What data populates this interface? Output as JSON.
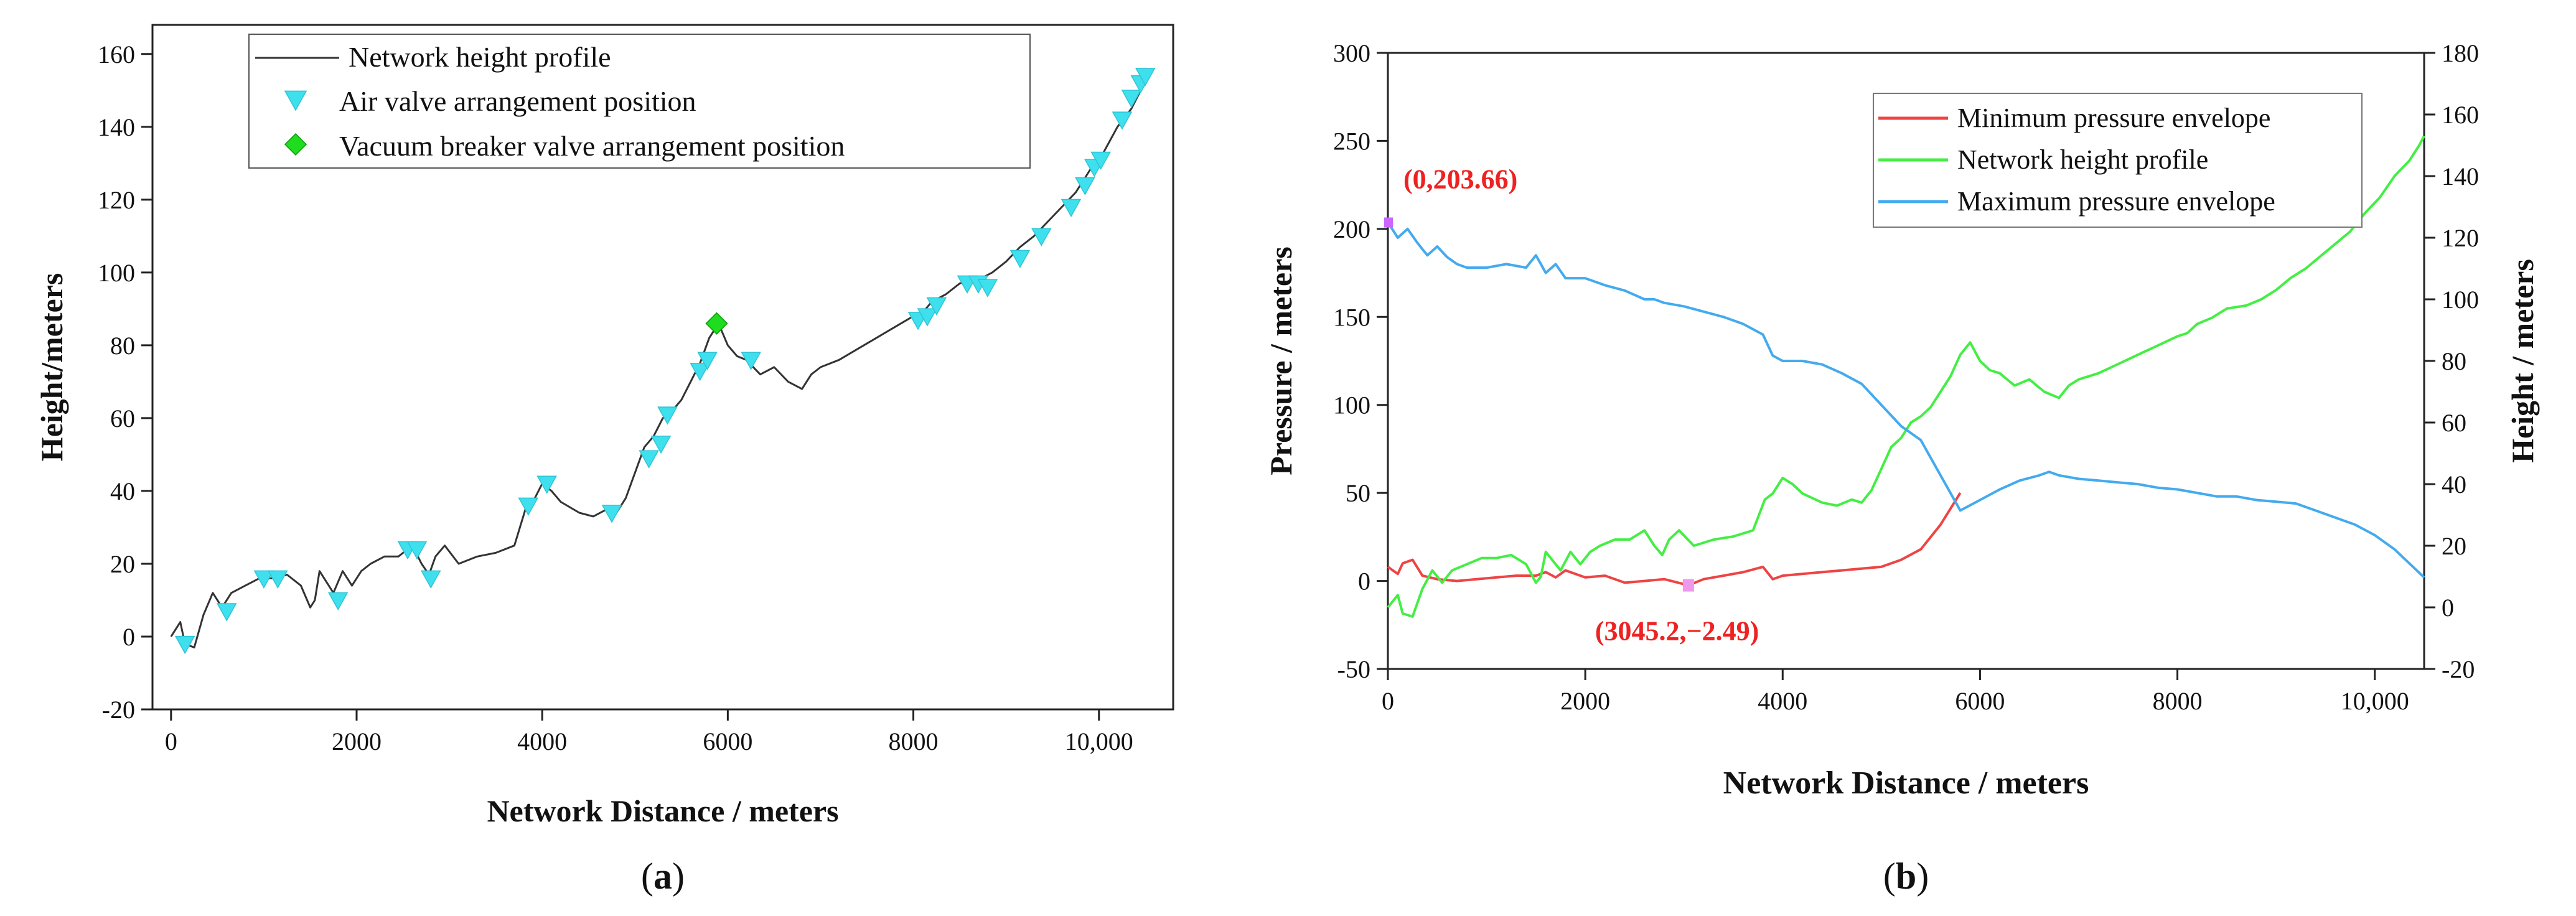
{
  "chart_data": [
    {
      "panel": "a",
      "caption_open": "(",
      "caption_letter": "a",
      "caption_close": ")",
      "type": "line",
      "xlabel": "Network Distance / meters",
      "ylabel": "Height/meters",
      "xlim": [
        -200,
        10800
      ],
      "ylim": [
        -20,
        168
      ],
      "xticks": [
        0,
        2000,
        4000,
        6000,
        8000,
        10000
      ],
      "xtick_labels": [
        "0",
        "2000",
        "4000",
        "6000",
        "8000",
        "10,000"
      ],
      "yticks": [
        -20,
        0,
        20,
        40,
        60,
        80,
        100,
        120,
        140,
        160
      ],
      "ytick_labels": [
        "-20",
        "0",
        "20",
        "40",
        "60",
        "80",
        "100",
        "120",
        "140",
        "160"
      ],
      "legend_position": "top-center",
      "legend": [
        {
          "label": "Network height profile",
          "color": "#333333",
          "kind": "line"
        },
        {
          "label": "Air valve arrangement position",
          "color": "#3fe0ee",
          "kind": "triangle-down"
        },
        {
          "label": "Vacuum breaker valve arrangement position",
          "color": "#1fdc1f",
          "kind": "diamond"
        }
      ],
      "series": [
        {
          "name": "Network height profile",
          "color": "#333333",
          "x": [
            0,
            100,
            150,
            250,
            350,
            450,
            550,
            650,
            800,
            950,
            1100,
            1250,
            1400,
            1500,
            1550,
            1600,
            1700,
            1750,
            1850,
            1950,
            2050,
            2150,
            2300,
            2450,
            2600,
            2700,
            2780,
            2850,
            2950,
            3100,
            3300,
            3500,
            3700,
            3820,
            3900,
            4000,
            4100,
            4200,
            4400,
            4550,
            4700,
            4800,
            4900,
            5000,
            5100,
            5200,
            5300,
            5400,
            5500,
            5600,
            5700,
            5800,
            5900,
            6000,
            6100,
            6200,
            6350,
            6500,
            6650,
            6800,
            6900,
            7000,
            7200,
            7400,
            7600,
            7800,
            8000,
            8100,
            8200,
            8350,
            8500,
            8700,
            8850,
            9000,
            9150,
            9300,
            9450,
            9600,
            9750,
            9900,
            10050,
            10200,
            10350,
            10450,
            10500
          ],
          "values": [
            0,
            4,
            -2,
            -3,
            6,
            12,
            8,
            12,
            14,
            16,
            16,
            17,
            14,
            8,
            10,
            18,
            14,
            12,
            18,
            14,
            18,
            20,
            22,
            22,
            25,
            20,
            17,
            22,
            25,
            20,
            22,
            23,
            25,
            35,
            37,
            42,
            40,
            37,
            34,
            33,
            35,
            34,
            38,
            45,
            52,
            55,
            60,
            62,
            65,
            70,
            75,
            82,
            86,
            80,
            77,
            76,
            72,
            74,
            70,
            68,
            72,
            74,
            76,
            79,
            82,
            85,
            88,
            89,
            92,
            94,
            97,
            98,
            100,
            103,
            107,
            110,
            114,
            118,
            122,
            128,
            133,
            140,
            145,
            150,
            153
          ]
        },
        {
          "name": "Air valve arrangement position",
          "color": "#3fe0ee",
          "x": [
            150,
            600,
            1000,
            1150,
            1800,
            2550,
            2650,
            2800,
            3850,
            4050,
            4750,
            5150,
            5280,
            5350,
            5700,
            5780,
            6250,
            8050,
            8150,
            8250,
            8580,
            8700,
            8800,
            9150,
            9380,
            9700,
            9850,
            9950,
            10020,
            10250,
            10350,
            10450,
            10500
          ],
          "values": [
            -2,
            7,
            16,
            16,
            10,
            24,
            24,
            16,
            36,
            42,
            34,
            49,
            53,
            61,
            73,
            76,
            76,
            87,
            88,
            91,
            97,
            97,
            96,
            104,
            110,
            118,
            124,
            129,
            131,
            142,
            148,
            152,
            154
          ]
        },
        {
          "name": "Vacuum breaker valve arrangement position",
          "color": "#1fdc1f",
          "x": [
            5880
          ],
          "values": [
            86
          ]
        }
      ]
    },
    {
      "panel": "b",
      "caption_open": "(",
      "caption_letter": "b",
      "caption_close": ")",
      "type": "line",
      "xlabel": "Network Distance / meters",
      "ylabel": "Pressure / meters",
      "ylabel_right": "Height / meters",
      "xlim": [
        0,
        10500
      ],
      "ylim": [
        -50,
        300
      ],
      "ylim_right": [
        -20,
        180
      ],
      "xticks": [
        0,
        2000,
        4000,
        6000,
        8000,
        10000
      ],
      "xtick_labels": [
        "0",
        "2000",
        "4000",
        "6000",
        "8000",
        "10,000"
      ],
      "yticks": [
        -50,
        0,
        50,
        100,
        150,
        200,
        250,
        300
      ],
      "ytick_labels": [
        "-50",
        "0",
        "50",
        "100",
        "150",
        "200",
        "250",
        "300"
      ],
      "yticks_right": [
        -20,
        0,
        20,
        40,
        60,
        80,
        100,
        120,
        140,
        160,
        180
      ],
      "ytick_labels_right": [
        "-20",
        "0",
        "20",
        "40",
        "60",
        "80",
        "100",
        "120",
        "140",
        "160",
        "180"
      ],
      "legend_position": "top-right",
      "legend": [
        {
          "label": "Minimum pressure envelope",
          "color": "#ee4444"
        },
        {
          "label": "Network height profile",
          "color": "#44ee44"
        },
        {
          "label": "Maximum pressure envelope",
          "color": "#44aaee"
        }
      ],
      "annotations": [
        {
          "text": "(0,203.66)",
          "x": 0,
          "y": 203.66,
          "color": "#ee2222",
          "marker_color": "#cc66ff"
        },
        {
          "text": "(3045.2,−2.49)",
          "x": 3045.2,
          "y": -2.49,
          "color": "#ee2222",
          "marker_color": "#ee99ee"
        }
      ],
      "series": [
        {
          "name": "Minimum pressure envelope",
          "color": "#ee4444",
          "axis": "left",
          "x": [
            0,
            100,
            150,
            250,
            350,
            500,
            700,
            900,
            1100,
            1300,
            1500,
            1600,
            1700,
            1800,
            2000,
            2200,
            2400,
            2600,
            2800,
            3045,
            3200,
            3400,
            3600,
            3800,
            3900,
            4000,
            4200,
            4400,
            4600,
            4800,
            5000,
            5200,
            5400,
            5600,
            5800
          ],
          "values": [
            8,
            4,
            10,
            12,
            3,
            1,
            0,
            1,
            2,
            3,
            3,
            5,
            2,
            6,
            2,
            3,
            -1,
            0,
            1,
            -2.49,
            1,
            3,
            5,
            8,
            1,
            3,
            4,
            5,
            6,
            7,
            8,
            12,
            18,
            32,
            50
          ]
        },
        {
          "name": "Network height profile",
          "color": "#44ee44",
          "axis": "right",
          "x": [
            0,
            100,
            150,
            250,
            350,
            450,
            550,
            650,
            800,
            950,
            1100,
            1250,
            1400,
            1500,
            1550,
            1600,
            1700,
            1750,
            1850,
            1950,
            2050,
            2150,
            2300,
            2450,
            2600,
            2700,
            2780,
            2850,
            2950,
            3100,
            3300,
            3500,
            3700,
            3820,
            3900,
            4000,
            4100,
            4200,
            4400,
            4550,
            4700,
            4800,
            4900,
            5000,
            5100,
            5200,
            5300,
            5400,
            5500,
            5600,
            5700,
            5800,
            5900,
            6000,
            6100,
            6200,
            6350,
            6500,
            6650,
            6800,
            6900,
            7000,
            7200,
            7400,
            7600,
            7800,
            8000,
            8100,
            8200,
            8350,
            8500,
            8700,
            8850,
            9000,
            9150,
            9300,
            9450,
            9600,
            9750,
            9900,
            10050,
            10200,
            10350,
            10450,
            10500
          ],
          "values": [
            0,
            4,
            -2,
            -3,
            6,
            12,
            8,
            12,
            14,
            16,
            16,
            17,
            14,
            8,
            10,
            18,
            14,
            12,
            18,
            14,
            18,
            20,
            22,
            22,
            25,
            20,
            17,
            22,
            25,
            20,
            22,
            23,
            25,
            35,
            37,
            42,
            40,
            37,
            34,
            33,
            35,
            34,
            38,
            45,
            52,
            55,
            60,
            62,
            65,
            70,
            75,
            82,
            86,
            80,
            77,
            76,
            72,
            74,
            70,
            68,
            72,
            74,
            76,
            79,
            82,
            85,
            88,
            89,
            92,
            94,
            97,
            98,
            100,
            103,
            107,
            110,
            114,
            118,
            122,
            128,
            133,
            140,
            145,
            150,
            153
          ]
        },
        {
          "name": "Maximum pressure envelope",
          "color": "#44aaee",
          "axis": "left",
          "x": [
            0,
            100,
            200,
            300,
            400,
            500,
            600,
            700,
            800,
            1000,
            1200,
            1400,
            1500,
            1550,
            1600,
            1700,
            1800,
            2000,
            2200,
            2400,
            2600,
            2700,
            2800,
            3000,
            3200,
            3400,
            3600,
            3800,
            3900,
            4000,
            4200,
            4400,
            4600,
            4800,
            5000,
            5200,
            5400,
            5500,
            5600,
            5800,
            6000,
            6200,
            6400,
            6600,
            6700,
            6800,
            7000,
            7200,
            7400,
            7600,
            7800,
            8000,
            8200,
            8400,
            8600,
            8800,
            9000,
            9200,
            9400,
            9600,
            9800,
            10000,
            10200,
            10500
          ],
          "values": [
            203.66,
            195,
            200,
            192,
            185,
            190,
            184,
            180,
            178,
            178,
            180,
            178,
            185,
            180,
            175,
            180,
            172,
            172,
            168,
            165,
            160,
            160,
            158,
            156,
            153,
            150,
            146,
            140,
            128,
            125,
            125,
            123,
            118,
            112,
            100,
            88,
            80,
            70,
            60,
            40,
            46,
            52,
            57,
            60,
            62,
            60,
            58,
            57,
            56,
            55,
            53,
            52,
            50,
            48,
            48,
            46,
            45,
            44,
            40,
            36,
            32,
            26,
            18,
            2
          ]
        }
      ]
    }
  ]
}
